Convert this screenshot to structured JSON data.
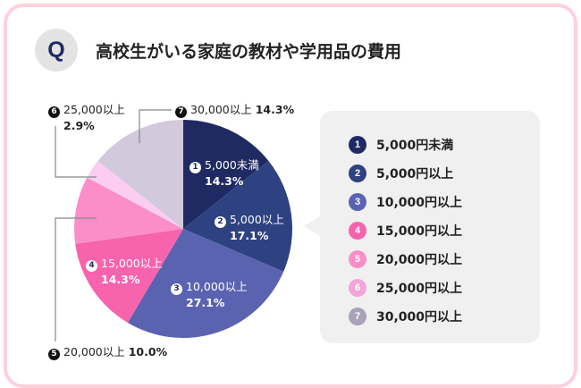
{
  "header": {
    "badge": "Q",
    "title": "高校生がいる家庭の教材や学用品の費用"
  },
  "chart_data": {
    "type": "pie",
    "title": "高校生がいる家庭の教材や学用品の費用",
    "unit": "%",
    "slices": [
      {
        "no": "1",
        "label": "5,000未満",
        "legend": "5,000円未満",
        "value": 14.3,
        "display": "14.3%",
        "color": "#1f2a63",
        "label_pos": "inside"
      },
      {
        "no": "2",
        "label": "5,000以上",
        "legend": "5,000円以上",
        "value": 17.1,
        "display": "17.1%",
        "color": "#2e4282",
        "label_pos": "inside"
      },
      {
        "no": "3",
        "label": "10,000以上",
        "legend": "10,000円以上",
        "value": 27.1,
        "display": "27.1%",
        "color": "#5a63b0",
        "label_pos": "inside"
      },
      {
        "no": "4",
        "label": "15,000以上",
        "legend": "15,000円以上",
        "value": 14.3,
        "display": "14.3%",
        "color": "#f763ad",
        "label_pos": "inside"
      },
      {
        "no": "5",
        "label": "20,000以上",
        "legend": "20,000円以上",
        "value": 10.0,
        "display": "10.0%",
        "color": "#fb8ec8",
        "label_pos": "outside"
      },
      {
        "no": "6",
        "label": "25,000以上",
        "legend": "25,000円以上",
        "value": 2.9,
        "display": "2.9%",
        "color": "#fbcdf0",
        "label_pos": "outside"
      },
      {
        "no": "7",
        "label": "30,000以上",
        "legend": "30,000円以上",
        "value": 14.3,
        "display": "14.3%",
        "color": "#d2c9dc",
        "label_pos": "outside"
      }
    ],
    "legend_dot_colors": [
      "#1f2a63",
      "#2e4282",
      "#5a63b0",
      "#f763ad",
      "#fb8ec8",
      "#f3a6da",
      "#a9a2b9"
    ],
    "start": "12 o'clock",
    "direction": "clockwise",
    "legend_position": "right"
  },
  "colors": {
    "frame": "#ffd0dc",
    "legend_bg": "#f0f0f0",
    "badge_bg": "#e4e3e3",
    "badge_text": "#1d2a66"
  }
}
